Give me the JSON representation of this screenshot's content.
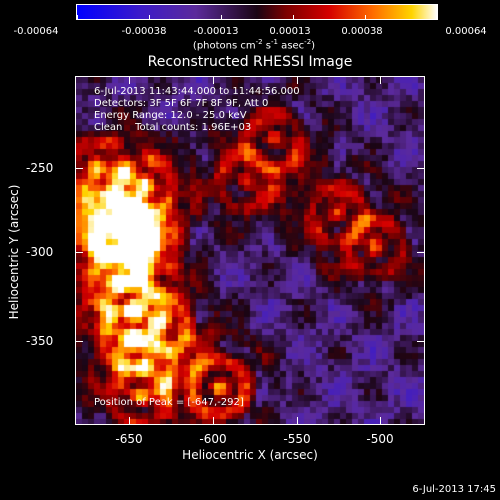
{
  "colorbar": {
    "ticks": [
      "-0.00064",
      "-0.00038",
      "-0.00013",
      "0.00013",
      "0.00038",
      "0.00064"
    ],
    "unit_label_parts": {
      "pre": "(photons cm",
      "exp1": "-2",
      "mid1": " s",
      "exp2": "-1",
      "mid2": " asec",
      "exp3": "-2",
      "post": ")"
    },
    "colors": [
      "#0000ff",
      "#3d1bc8",
      "#5b2a9b",
      "#1a0514",
      "#7a0000",
      "#d40000",
      "#ff6a00",
      "#ffd400",
      "#ffffff"
    ]
  },
  "title": "Reconstructed RHESSI Image",
  "info": {
    "time_range": "6-Jul-2013 11:43:44.000 to 11:44:56.000",
    "detectors": "Detectors: 3F 5F 6F 7F 8F 9F, Att 0",
    "energy_range": "Energy Range: 12.0 - 25.0 keV",
    "clean_counts": "Clean    Total counts: 1.96E+03"
  },
  "peak": "Position of Peak = [-647,-292]",
  "axes": {
    "x_label": "Heliocentric X (arcsec)",
    "y_label": "Heliocentric Y (arcsec)",
    "x_ticks": [
      "-650",
      "-600",
      "-550",
      "-500"
    ],
    "y_ticks": [
      "-250",
      "-300",
      "-350"
    ]
  },
  "footer_date": "6-Jul-2013 17:45",
  "chart_data": {
    "type": "heatmap",
    "title": "Reconstructed RHESSI Image",
    "xlabel": "Heliocentric X (arcsec)",
    "ylabel": "Heliocentric Y (arcsec)",
    "xlim": [
      -678,
      -488
    ],
    "ylim": [
      -395,
      -205
    ],
    "color_scale": {
      "min": -0.00064,
      "max": 0.00064,
      "ticks": [
        -0.00064,
        -0.00038,
        -0.00013,
        0.00013,
        0.00038,
        0.00064
      ],
      "unit": "photons cm^-2 s^-1 asec^-2"
    },
    "peak_position": [
      -647,
      -292
    ],
    "bright_regions": [
      {
        "x": -652,
        "y": -290,
        "level": "high"
      },
      {
        "x": -640,
        "y": -265,
        "level": "medium"
      },
      {
        "x": -632,
        "y": -340,
        "level": "medium"
      },
      {
        "x": -600,
        "y": -375,
        "level": "high"
      },
      {
        "x": -570,
        "y": -240,
        "level": "medium"
      },
      {
        "x": -585,
        "y": -262,
        "level": "medium"
      },
      {
        "x": -535,
        "y": -280,
        "level": "medium"
      },
      {
        "x": -515,
        "y": -298,
        "level": "medium"
      }
    ],
    "grid": false
  }
}
